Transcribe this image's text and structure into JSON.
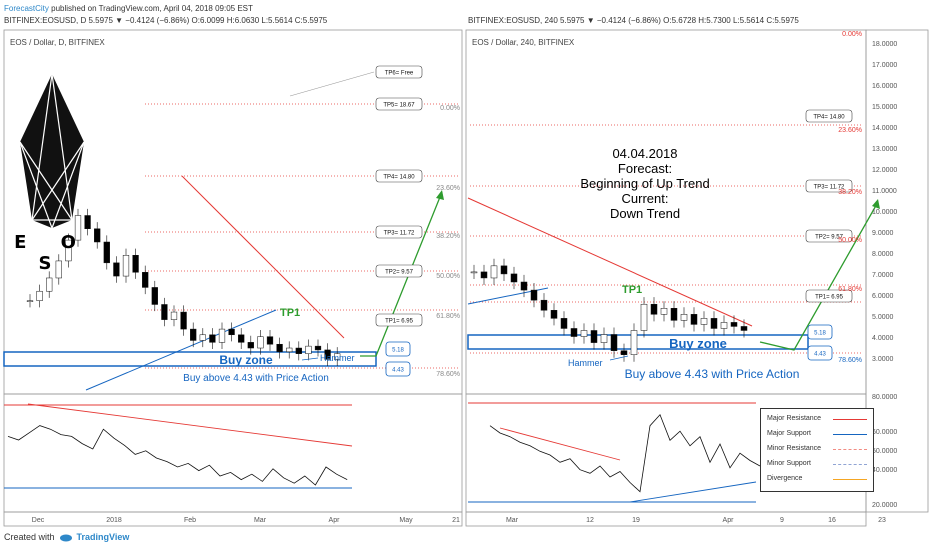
{
  "header": {
    "brand": "ForecastCity",
    "published": "published on TradingView.com, April 04, 2018 09:05 EST",
    "left_quote": "BITFINEX:EOSUSD, D  5.5975  ▼ −0.4124 (−6.86%)  O:6.0099  H:6.0630  L:5.5614  C:5.5975",
    "right_quote": "BITFINEX:EOSUSD, 240  5.5975  ▼ −0.4124 (−6.86%)  O:5.6728  H:5.7300  L:5.5614  C:5.5975"
  },
  "footer": {
    "created": "Created with",
    "tradingview": "TradingView"
  },
  "logo": {
    "text": "E O S"
  },
  "colors": {
    "up": "#ffffff",
    "down": "#000000",
    "resistance": "#e53935",
    "support": "#1565c0",
    "trend_up": "#2e9c2e",
    "fib": "#e53935"
  },
  "chart_data": [
    {
      "type": "candlestick",
      "title": "EOS / Dollar, D, BITFINEX",
      "y_scale": "price",
      "x_ticks": [
        "Dec",
        "2018",
        "Feb",
        "Mar",
        "Apr",
        "May",
        "21"
      ],
      "close_series": [
        8.4,
        8.9,
        9.6,
        10.5,
        11.6,
        12.9,
        12.2,
        11.5,
        10.4,
        9.7,
        10.8,
        9.9,
        9.1,
        8.2,
        7.4,
        7.8,
        6.9,
        6.3,
        6.6,
        6.2,
        6.9,
        6.6,
        6.2,
        5.9,
        6.5,
        6.1,
        5.7,
        5.9,
        5.6,
        6.0,
        5.8,
        5.3,
        5.6
      ],
      "annotations": {
        "tp_labels": [
          "TP6= Free",
          "TP5= 18.67",
          "TP4= 14.80",
          "TP3= 11.72",
          "TP2= 9.57",
          "TP1= 6.95"
        ],
        "fib_levels": [
          "0.00%",
          "23.60%",
          "38.20%",
          "50.00%",
          "61.80%",
          "78.60%"
        ],
        "zone_upper": "5.18",
        "zone_lower": "4.43",
        "buy_zone": "Buy zone",
        "tp1_marker": "TP1",
        "hammer": "Hammer",
        "buy_above": "Buy above 4.43 with Price Action"
      },
      "indicator_series": [
        62,
        60,
        64,
        68,
        66,
        63,
        62,
        58,
        55,
        66,
        61,
        57,
        52,
        54,
        50,
        48,
        45,
        47,
        43,
        46,
        40,
        42,
        38,
        41,
        37,
        44,
        39,
        36,
        40,
        35,
        45,
        41,
        38
      ]
    },
    {
      "type": "candlestick",
      "title": "EOS / Dollar, 240, BITFINEX",
      "y_axis_ticks": [
        "18.0000",
        "17.0000",
        "16.0000",
        "15.0000",
        "14.0000",
        "13.0000",
        "12.0000",
        "11.0000",
        "10.0000",
        "9.0000",
        "8.0000",
        "7.0000",
        "6.0000",
        "5.0000",
        "4.0000",
        "3.0000"
      ],
      "indicator_ticks": [
        "80.0000",
        "60.0000",
        "50.0000",
        "40.0000",
        "20.0000"
      ],
      "x_ticks": [
        "Mar",
        "12",
        "19",
        "Apr",
        "9",
        "16",
        "23"
      ],
      "close_series": [
        8.5,
        8.2,
        8.8,
        8.4,
        8.0,
        7.6,
        7.1,
        6.6,
        6.2,
        5.7,
        5.3,
        5.6,
        5.0,
        5.4,
        4.6,
        4.4,
        5.6,
        6.9,
        6.4,
        6.7,
        6.1,
        6.4,
        5.9,
        6.2,
        5.7,
        6.0,
        5.8,
        5.6
      ],
      "annotations": {
        "forecast_text": [
          "04.04.2018",
          "Forecast:",
          "Beginning of Up Trend",
          "Current:",
          "Down Trend"
        ],
        "tp_labels": [
          "TP4= 14.80",
          "TP3= 11.72",
          "TP2= 9.57",
          "TP1= 6.95"
        ],
        "fib_levels": [
          "0.00%",
          "23.60%",
          "38.20%",
          "50.00%",
          "61.80%",
          "78.60%"
        ],
        "zone_upper": "5.18",
        "zone_lower": "4.43",
        "buy_zone": "Buy zone",
        "tp1_marker": "TP1",
        "hammer": "Hammer",
        "buy_above": "Buy above 4.43 with Price Action"
      },
      "indicator_series": [
        66,
        62,
        60,
        57,
        55,
        52,
        50,
        46,
        48,
        42,
        40,
        44,
        38,
        41,
        35,
        30,
        66,
        72,
        58,
        63,
        55,
        60,
        46,
        56,
        43,
        51,
        47,
        44
      ],
      "legend": [
        {
          "name": "Major Resistance",
          "color": "#e53935"
        },
        {
          "name": "Major Support",
          "color": "#1565c0"
        },
        {
          "name": "Minor Resistance",
          "color": "#f28b82"
        },
        {
          "name": "Minor Support",
          "color": "#90a4d4"
        },
        {
          "name": "Divergence",
          "color": "#f5a623"
        }
      ]
    }
  ]
}
